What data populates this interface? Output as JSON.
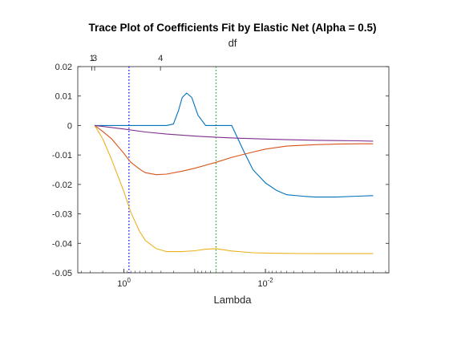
{
  "chart_data": {
    "type": "line",
    "title": "Trace Plot of Coefficients Fit by Elastic Net (Alpha = 0.5)",
    "xlabel": "Lambda",
    "top_xlabel": "df",
    "ylabel": "",
    "x_scale": "log-reversed",
    "xlim": [
      4.5,
      0.00018
    ],
    "ylim": [
      -0.05,
      0.02
    ],
    "y_ticks": [
      "0.02",
      "0.01",
      "0",
      "-0.01",
      "-0.02",
      "-0.03",
      "-0.04",
      "-0.05"
    ],
    "y_tick_values": [
      0.02,
      0.01,
      0,
      -0.01,
      -0.02,
      -0.03,
      -0.04,
      -0.05
    ],
    "x_ticks": [
      {
        "value": 1,
        "base": "10",
        "exp": "0"
      },
      {
        "value": 0.01,
        "base": "10",
        "exp": "-2"
      }
    ],
    "top_ticks": [
      {
        "value": 2.85,
        "label": "1"
      },
      {
        "value": 2.6,
        "label": "3"
      },
      {
        "value": 0.305,
        "label": "4"
      }
    ],
    "vlines": [
      {
        "x": 0.85,
        "color": "#0000ff",
        "style": "dotted"
      },
      {
        "x": 0.05,
        "color": "#22aa22",
        "style": "dotted"
      }
    ],
    "grid": false,
    "series": [
      {
        "color": "#0072bd",
        "x": [
          2.6,
          0.5,
          0.33,
          0.25,
          0.2,
          0.17,
          0.15,
          0.13,
          0.11,
          0.09,
          0.07,
          0.05,
          0.04,
          0.03,
          0.02,
          0.015,
          0.01,
          0.007,
          0.005,
          0.003,
          0.002,
          0.001,
          0.0005,
          0.0003
        ],
        "y": [
          0.0,
          0.0,
          0.0,
          0.0,
          0.0005,
          0.005,
          0.0095,
          0.011,
          0.0095,
          0.0035,
          0.0,
          0.0,
          0.0,
          0.0,
          -0.009,
          -0.015,
          -0.0195,
          -0.022,
          -0.0235,
          -0.024,
          -0.0243,
          -0.0243,
          -0.024,
          -0.0238
        ]
      },
      {
        "color": "#d95319",
        "x": [
          2.6,
          2.0,
          1.5,
          1.0,
          0.8,
          0.6,
          0.5,
          0.35,
          0.25,
          0.15,
          0.1,
          0.05,
          0.03,
          0.015,
          0.01,
          0.005,
          0.002,
          0.001,
          0.0005,
          0.0003
        ],
        "y": [
          0.0,
          -0.002,
          -0.0045,
          -0.0095,
          -0.0125,
          -0.0148,
          -0.016,
          -0.0167,
          -0.0165,
          -0.0155,
          -0.0145,
          -0.0125,
          -0.0108,
          -0.009,
          -0.008,
          -0.007,
          -0.0065,
          -0.0063,
          -0.0062,
          -0.0062
        ]
      },
      {
        "color": "#edb120",
        "x": [
          2.6,
          2.0,
          1.5,
          1.0,
          0.8,
          0.6,
          0.5,
          0.35,
          0.25,
          0.15,
          0.1,
          0.07,
          0.05,
          0.03,
          0.015,
          0.01,
          0.005,
          0.002,
          0.001,
          0.0005,
          0.0003
        ],
        "y": [
          0.0,
          -0.0045,
          -0.0115,
          -0.0225,
          -0.0295,
          -0.036,
          -0.039,
          -0.0418,
          -0.0428,
          -0.0428,
          -0.0425,
          -0.042,
          -0.0418,
          -0.0426,
          -0.0432,
          -0.0433,
          -0.0434,
          -0.0435,
          -0.0435,
          -0.0435,
          -0.0435
        ]
      },
      {
        "color": "#7e2f8e",
        "x": [
          2.6,
          1.0,
          0.5,
          0.25,
          0.1,
          0.05,
          0.025,
          0.01,
          0.005,
          0.002,
          0.001,
          0.0005,
          0.0003
        ],
        "y": [
          0.0,
          -0.0012,
          -0.0022,
          -0.0029,
          -0.0036,
          -0.004,
          -0.0043,
          -0.0046,
          -0.0048,
          -0.005,
          -0.0051,
          -0.0052,
          -0.0053
        ]
      }
    ]
  }
}
